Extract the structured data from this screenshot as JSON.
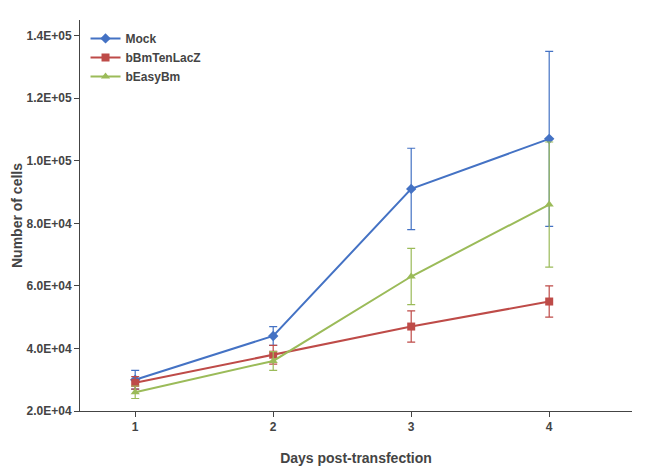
{
  "chart_data": {
    "type": "line",
    "x": [
      1,
      2,
      3,
      4
    ],
    "series": [
      {
        "name": "Mock",
        "color": "#4472C4",
        "marker": "diamond",
        "values": [
          30000,
          44000,
          91000,
          107000
        ],
        "yerr": [
          3000,
          3000,
          13000,
          28000
        ]
      },
      {
        "name": "bBmTenLacZ",
        "color": "#BE4B48",
        "marker": "square",
        "values": [
          29000,
          38000,
          47000,
          55000
        ],
        "yerr": [
          2000,
          3000,
          5000,
          5000
        ]
      },
      {
        "name": "bEasyBm",
        "color": "#9BBB59",
        "marker": "triangle-up",
        "values": [
          26000,
          36000,
          63000,
          86000
        ],
        "yerr": [
          2000,
          3000,
          9000,
          20000
        ]
      }
    ],
    "xlabel": "Days post-transfection",
    "ylabel": "Number of cells",
    "xlim": [
      0.6,
      4.6
    ],
    "xticks": [
      1,
      2,
      3,
      4
    ],
    "ylim": [
      20000,
      145000
    ],
    "yticks": [
      {
        "value": 20000,
        "label": "2.0E+04"
      },
      {
        "value": 40000,
        "label": "4.0E+04"
      },
      {
        "value": 60000,
        "label": "6.0E+04"
      },
      {
        "value": 80000,
        "label": "8.0E+04"
      },
      {
        "value": 100000,
        "label": "1.0E+05"
      },
      {
        "value": 120000,
        "label": "1.2E+05"
      },
      {
        "value": 140000,
        "label": "1.4E+05"
      }
    ],
    "legend": "upper left",
    "grid": false
  }
}
